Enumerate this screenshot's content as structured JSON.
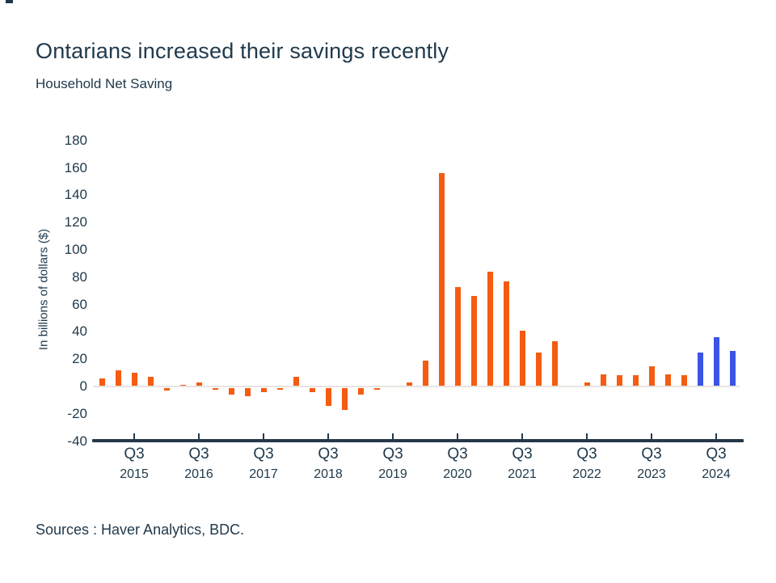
{
  "footer": {
    "sources": "Sources : Haver Analytics, BDC."
  },
  "chart_data": {
    "type": "bar",
    "title": "Ontarians increased their savings recently",
    "subtitle": "Household Net Saving",
    "ylabel": "In billions of dollars ($)",
    "ylim": [
      -40,
      180
    ],
    "ytick_step": 20,
    "yticks": [
      180,
      160,
      140,
      120,
      100,
      80,
      60,
      40,
      20,
      0,
      -20,
      -40
    ],
    "grid": "off",
    "legend": "none",
    "frequency": "quarterly",
    "xtick_quarter_label": "Q3",
    "years": [
      "2015",
      "2016",
      "2017",
      "2018",
      "2019",
      "2020",
      "2021",
      "2022",
      "2023",
      "2024"
    ],
    "series": [
      {
        "name": "Household net saving ($B)",
        "labels": [
          "2015 Q1",
          "2015 Q2",
          "2015 Q3",
          "2015 Q4",
          "2016 Q1",
          "2016 Q2",
          "2016 Q3",
          "2016 Q4",
          "2017 Q1",
          "2017 Q2",
          "2017 Q3",
          "2017 Q4",
          "2018 Q1",
          "2018 Q2",
          "2018 Q3",
          "2018 Q4",
          "2019 Q1",
          "2019 Q2",
          "2019 Q3",
          "2019 Q4",
          "2020 Q1",
          "2020 Q2",
          "2020 Q3",
          "2020 Q4",
          "2021 Q1",
          "2021 Q2",
          "2021 Q3",
          "2021 Q4",
          "2022 Q1",
          "2022 Q2",
          "2022 Q3",
          "2022 Q4",
          "2023 Q1",
          "2023 Q2",
          "2023 Q3",
          "2023 Q4",
          "2024 Q1",
          "2024 Q2",
          "2024 Q3",
          "2024 Q4"
        ],
        "values": [
          6,
          12,
          10,
          7,
          -2,
          1,
          3,
          -1,
          -5,
          -6,
          -3,
          -1,
          7,
          -3,
          -13,
          -16,
          -5,
          -1,
          0,
          3,
          19,
          156,
          73,
          66,
          84,
          77,
          41,
          25,
          33,
          0,
          3,
          9,
          8,
          8,
          15,
          9,
          8,
          25,
          36,
          26
        ]
      }
    ],
    "highlight": {
      "from_index": 37,
      "note": "last three quarters shown in blue"
    },
    "colors": {
      "bar_default": "#f55c11",
      "bar_highlight": "#3b54e7",
      "axis": "#24384a",
      "zero_line": "#e8e4de",
      "text": "#203a4c"
    }
  }
}
